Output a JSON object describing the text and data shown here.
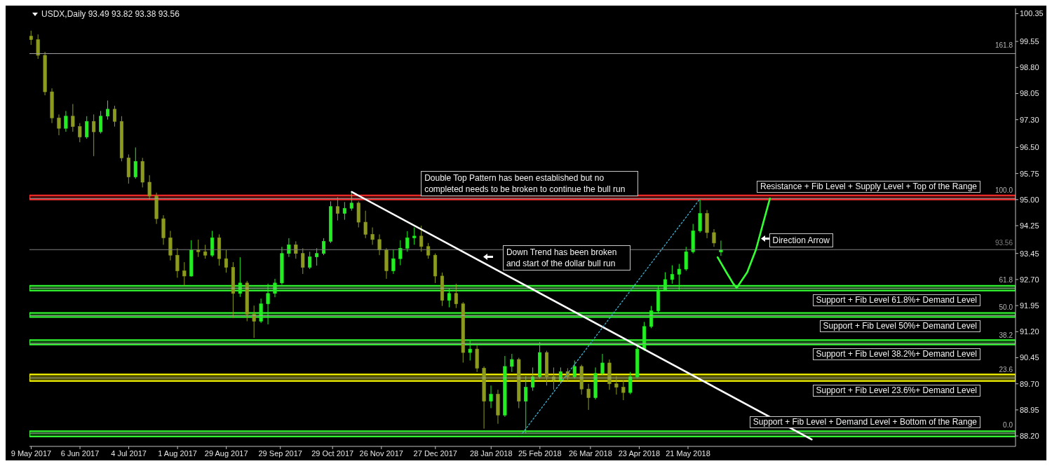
{
  "chart_data": {
    "type": "candlestick",
    "title": "USDX,Daily 93.49 93.82 93.38 93.56",
    "x": [
      "2017-05-09",
      "2017-05-13",
      "2017-05-17",
      "2017-05-21",
      "2017-05-25",
      "2017-05-29",
      "2017-06-02",
      "2017-06-06",
      "2017-06-10",
      "2017-06-14",
      "2017-06-18",
      "2017-06-22",
      "2017-06-26",
      "2017-06-30",
      "2017-07-04",
      "2017-07-08",
      "2017-07-12",
      "2017-07-16",
      "2017-07-20",
      "2017-07-24",
      "2017-07-28",
      "2017-08-01",
      "2017-08-05",
      "2017-08-09",
      "2017-08-13",
      "2017-08-17",
      "2017-08-21",
      "2017-08-25",
      "2017-08-29",
      "2017-09-02",
      "2017-09-06",
      "2017-09-10",
      "2017-09-14",
      "2017-09-18",
      "2017-09-22",
      "2017-09-26",
      "2017-09-30",
      "2017-10-04",
      "2017-10-08",
      "2017-10-12",
      "2017-10-16",
      "2017-10-20",
      "2017-10-24",
      "2017-10-28",
      "2017-11-01",
      "2017-11-05",
      "2017-11-09",
      "2017-11-13",
      "2017-11-17",
      "2017-11-21",
      "2017-11-25",
      "2017-11-29",
      "2017-12-03",
      "2017-12-07",
      "2017-12-11",
      "2017-12-15",
      "2017-12-19",
      "2017-12-23",
      "2017-12-27",
      "2017-12-31",
      "2018-01-04",
      "2018-01-08",
      "2018-01-12",
      "2018-01-16",
      "2018-01-20",
      "2018-01-24",
      "2018-01-28",
      "2018-02-01",
      "2018-02-05",
      "2018-02-09",
      "2018-02-13",
      "2018-02-17",
      "2018-02-21",
      "2018-02-25",
      "2018-03-01",
      "2018-03-05",
      "2018-03-09",
      "2018-03-13",
      "2018-03-17",
      "2018-03-21",
      "2018-03-25",
      "2018-03-29",
      "2018-04-02",
      "2018-04-06",
      "2018-04-10",
      "2018-04-14",
      "2018-04-18",
      "2018-04-22",
      "2018-04-26",
      "2018-04-30",
      "2018-05-04",
      "2018-05-08",
      "2018-05-12",
      "2018-05-16",
      "2018-05-20",
      "2018-05-24",
      "2018-05-28",
      "2018-06-01",
      "2018-06-05",
      "2018-06-09"
    ],
    "ohlc": [
      [
        99.7,
        99.86,
        99.45,
        99.6
      ],
      [
        99.6,
        99.75,
        99.05,
        99.15
      ],
      [
        99.15,
        99.25,
        98.0,
        98.1
      ],
      [
        98.1,
        98.2,
        97.2,
        97.35
      ],
      [
        97.35,
        97.45,
        96.85,
        97.05
      ],
      [
        97.05,
        97.55,
        96.95,
        97.4
      ],
      [
        97.4,
        97.75,
        96.95,
        97.1
      ],
      [
        97.1,
        97.2,
        96.65,
        96.8
      ],
      [
        96.8,
        97.4,
        96.75,
        97.25
      ],
      [
        97.25,
        97.45,
        96.25,
        96.95
      ],
      [
        96.95,
        97.55,
        96.9,
        97.4
      ],
      [
        97.4,
        97.85,
        97.3,
        97.6
      ],
      [
        97.6,
        97.7,
        97.1,
        97.25
      ],
      [
        97.25,
        97.4,
        96.1,
        96.2
      ],
      [
        96.2,
        96.3,
        95.46,
        95.65
      ],
      [
        95.65,
        96.5,
        95.6,
        96.1
      ],
      [
        96.1,
        96.2,
        95.35,
        95.5
      ],
      [
        95.5,
        95.7,
        95.0,
        95.1
      ],
      [
        95.1,
        95.2,
        94.3,
        94.45
      ],
      [
        94.45,
        94.55,
        93.7,
        93.9
      ],
      [
        93.9,
        94.1,
        93.25,
        93.4
      ],
      [
        93.4,
        93.6,
        92.75,
        92.95
      ],
      [
        92.95,
        93.2,
        92.52,
        92.8
      ],
      [
        92.8,
        93.83,
        92.78,
        93.55
      ],
      [
        93.55,
        93.85,
        93.35,
        93.5
      ],
      [
        93.5,
        93.7,
        93.3,
        93.4
      ],
      [
        93.4,
        94.1,
        93.35,
        93.9
      ],
      [
        93.9,
        94.0,
        93.1,
        93.3
      ],
      [
        93.3,
        93.55,
        92.9,
        93.05
      ],
      [
        93.05,
        93.2,
        91.6,
        92.3
      ],
      [
        92.3,
        93.34,
        92.2,
        92.6
      ],
      [
        92.6,
        92.66,
        91.5,
        91.7
      ],
      [
        91.7,
        91.95,
        91.02,
        91.5
      ],
      [
        91.5,
        92.15,
        91.45,
        92.0
      ],
      [
        92.0,
        92.58,
        91.41,
        92.3
      ],
      [
        92.3,
        92.72,
        92.19,
        92.6
      ],
      [
        92.6,
        93.64,
        92.55,
        93.45
      ],
      [
        93.45,
        93.89,
        93.35,
        93.7
      ],
      [
        93.7,
        93.8,
        93.3,
        93.45
      ],
      [
        93.45,
        93.6,
        92.86,
        93.05
      ],
      [
        93.05,
        93.5,
        93.0,
        93.35
      ],
      [
        93.35,
        93.6,
        93.1,
        93.45
      ],
      [
        93.45,
        93.89,
        93.4,
        93.8
      ],
      [
        93.8,
        94.95,
        93.75,
        94.8
      ],
      [
        94.8,
        95.07,
        94.4,
        94.6
      ],
      [
        94.6,
        94.93,
        94.42,
        94.75
      ],
      [
        94.75,
        95.2,
        94.68,
        94.9
      ],
      [
        94.9,
        94.95,
        94.2,
        94.35
      ],
      [
        94.35,
        94.68,
        93.89,
        94.0
      ],
      [
        94.0,
        94.2,
        93.7,
        93.85
      ],
      [
        93.85,
        94.0,
        93.4,
        93.55
      ],
      [
        93.55,
        93.6,
        92.72,
        92.95
      ],
      [
        92.95,
        93.56,
        92.86,
        93.3
      ],
      [
        93.3,
        93.83,
        93.11,
        93.6
      ],
      [
        93.6,
        94.09,
        93.5,
        93.9
      ],
      [
        93.9,
        94.2,
        93.7,
        93.95
      ],
      [
        93.95,
        94.25,
        93.5,
        93.65
      ],
      [
        93.65,
        93.75,
        93.3,
        93.4
      ],
      [
        93.4,
        93.45,
        92.6,
        92.8
      ],
      [
        92.8,
        92.9,
        91.94,
        92.1
      ],
      [
        92.1,
        92.45,
        91.9,
        92.3
      ],
      [
        92.3,
        92.58,
        91.88,
        92.0
      ],
      [
        92.0,
        92.05,
        90.31,
        90.6
      ],
      [
        90.6,
        90.96,
        90.37,
        90.7
      ],
      [
        90.7,
        90.8,
        90.04,
        90.15
      ],
      [
        90.15,
        90.2,
        88.41,
        89.2
      ],
      [
        89.2,
        89.65,
        89.0,
        89.4
      ],
      [
        89.4,
        89.53,
        88.55,
        88.8
      ],
      [
        88.8,
        90.5,
        88.75,
        90.2
      ],
      [
        90.2,
        90.56,
        90.04,
        90.4
      ],
      [
        90.4,
        90.45,
        89.0,
        89.2
      ],
      [
        89.2,
        89.92,
        88.28,
        89.6
      ],
      [
        89.6,
        90.17,
        89.5,
        89.9
      ],
      [
        89.9,
        90.9,
        89.85,
        90.6
      ],
      [
        90.6,
        90.65,
        89.65,
        89.9
      ],
      [
        89.9,
        90.17,
        89.53,
        89.8
      ],
      [
        89.8,
        90.17,
        89.7,
        90.05
      ],
      [
        90.05,
        90.15,
        89.78,
        89.9
      ],
      [
        89.9,
        90.37,
        89.85,
        90.2
      ],
      [
        90.2,
        90.25,
        89.39,
        89.55
      ],
      [
        89.55,
        89.7,
        88.95,
        89.3
      ],
      [
        89.3,
        90.17,
        89.25,
        90.0
      ],
      [
        90.0,
        90.56,
        89.95,
        90.3
      ],
      [
        90.3,
        90.4,
        89.53,
        89.7
      ],
      [
        89.7,
        89.92,
        89.39,
        89.6
      ],
      [
        89.6,
        89.8,
        89.23,
        89.45
      ],
      [
        89.45,
        90.04,
        89.4,
        89.9
      ],
      [
        89.9,
        90.82,
        89.85,
        90.7
      ],
      [
        90.7,
        91.48,
        90.65,
        91.35
      ],
      [
        91.35,
        91.94,
        91.3,
        91.8
      ],
      [
        91.8,
        92.52,
        91.75,
        92.4
      ],
      [
        92.4,
        92.91,
        92.38,
        92.7
      ],
      [
        92.7,
        93.11,
        92.58,
        92.85
      ],
      [
        92.85,
        93.15,
        92.38,
        93.0
      ],
      [
        93.0,
        93.64,
        92.95,
        93.5
      ],
      [
        93.5,
        94.3,
        93.45,
        94.1
      ],
      [
        94.1,
        95.0,
        94.05,
        94.6
      ],
      [
        94.6,
        94.7,
        93.89,
        94.05
      ],
      [
        94.05,
        94.15,
        93.64,
        93.75
      ],
      [
        93.49,
        93.82,
        93.38,
        93.56
      ]
    ],
    "colors": [
      "#8c9a1e",
      "#8c9a1e",
      "#8c9a1e",
      "#8c9a1e",
      "#8c9a1e",
      "#22ee22",
      "#8c9a1e",
      "#8c9a1e",
      "#22ee22",
      "#8c9a1e",
      "#22ee22",
      "#22ee22",
      "#8c9a1e",
      "#8c9a1e",
      "#8c9a1e",
      "#22ee22",
      "#8c9a1e",
      "#8c9a1e",
      "#8c9a1e",
      "#8c9a1e",
      "#8c9a1e",
      "#8c9a1e",
      "#8c9a1e",
      "#22ee22",
      "#8c9a1e",
      "#8c9a1e",
      "#22ee22",
      "#8c9a1e",
      "#8c9a1e",
      "#8c9a1e",
      "#22ee22",
      "#8c9a1e",
      "#8c9a1e",
      "#22ee22",
      "#22ee22",
      "#22ee22",
      "#22ee22",
      "#22ee22",
      "#8c9a1e",
      "#8c9a1e",
      "#22ee22",
      "#22ee22",
      "#22ee22",
      "#22ee22",
      "#8c9a1e",
      "#22ee22",
      "#22ee22",
      "#8c9a1e",
      "#8c9a1e",
      "#8c9a1e",
      "#8c9a1e",
      "#8c9a1e",
      "#22ee22",
      "#22ee22",
      "#22ee22",
      "#22ee22",
      "#8c9a1e",
      "#8c9a1e",
      "#8c9a1e",
      "#8c9a1e",
      "#22ee22",
      "#8c9a1e",
      "#8c9a1e",
      "#22ee22",
      "#8c9a1e",
      "#8c9a1e",
      "#22ee22",
      "#8c9a1e",
      "#22ee22",
      "#22ee22",
      "#8c9a1e",
      "#22ee22",
      "#22ee22",
      "#22ee22",
      "#8c9a1e",
      "#8c9a1e",
      "#22ee22",
      "#8c9a1e",
      "#22ee22",
      "#8c9a1e",
      "#8c9a1e",
      "#22ee22",
      "#22ee22",
      "#8c9a1e",
      "#8c9a1e",
      "#8c9a1e",
      "#22ee22",
      "#22ee22",
      "#22ee22",
      "#22ee22",
      "#22ee22",
      "#22ee22",
      "#22ee22",
      "#22ee22",
      "#22ee22",
      "#22ee22",
      "#22ee22",
      "#8c9a1e",
      "#8c9a1e",
      "#22ee22"
    ],
    "series": [
      {
        "type": "line",
        "color": "#ffffff",
        "x": [
          "2017-11-09",
          "2018-07-31"
        ],
        "values": [
          95.22,
          88.1
        ]
      },
      {
        "type": "line",
        "color": "#40b0d0",
        "line_style": "dotted",
        "x": [
          "2018-02-15",
          "2018-05-28"
        ],
        "values": [
          88.28,
          95.03
        ]
      },
      {
        "type": "line",
        "color": "#33ff33",
        "x": [
          "2018-06-07",
          "2018-06-12",
          "2018-06-16",
          "2018-06-18",
          "2018-06-24",
          "2018-06-29",
          "2018-07-03",
          "2018-07-07"
        ],
        "values": [
          93.34,
          92.91,
          92.58,
          92.46,
          92.91,
          93.56,
          94.3,
          95.03
        ]
      }
    ],
    "xlim": [
      "2017-05-08",
      "2018-11-25"
    ],
    "xticks": [
      {
        "value": "2017-05-09",
        "label": "9 May 2017"
      },
      {
        "value": "2017-06-06",
        "label": "6 Jun 2017"
      },
      {
        "value": "2017-07-04",
        "label": "4 Jul 2017"
      },
      {
        "value": "2017-08-01",
        "label": "1 Aug 2017"
      },
      {
        "value": "2017-08-29",
        "label": "29 Aug 2017"
      },
      {
        "value": "2017-09-29",
        "label": "29 Sep 2017"
      },
      {
        "value": "2017-10-29",
        "label": "29 Oct 2017"
      },
      {
        "value": "2017-11-26",
        "label": "26 Nov 2017"
      },
      {
        "value": "2017-12-27",
        "label": "27 Dec 2017"
      },
      {
        "value": "2018-01-28",
        "label": "28 Jan 2018"
      },
      {
        "value": "2018-02-25",
        "label": "25 Feb 2018"
      },
      {
        "value": "2018-03-26",
        "label": "26 Mar 2018"
      },
      {
        "value": "2018-04-23",
        "label": "23 Apr 2018"
      },
      {
        "value": "2018-05-21",
        "label": "21 May 2018"
      }
    ],
    "ylim": [
      87.9,
      100.5
    ],
    "yticks": [
      {
        "value": 88.2,
        "label": "88.20"
      },
      88.95,
      {
        "value": 89.7,
        "label": "89.70"
      },
      90.45,
      {
        "value": 91.2,
        "label": "91.20"
      },
      91.95,
      {
        "value": 92.7,
        "label": "92.70"
      },
      93.45,
      94.25,
      {
        "value": 95,
        "label": "95.00"
      },
      95.75,
      {
        "value": 96.5,
        "label": "96.50"
      },
      {
        "value": 97.3,
        "label": "97.30"
      },
      98.05,
      {
        "value": 98.8,
        "label": "98.80"
      },
      99.55,
      100.35
    ],
    "ref_lines": [
      {
        "axis": "y",
        "value": 99.2,
        "color": "#a0a0a0"
      },
      {
        "axis": "y",
        "value": 95.03,
        "color": "#a0a0a0"
      },
      {
        "axis": "y",
        "value": 92.45,
        "color": "#a0a0a0"
      },
      {
        "axis": "y",
        "value": 91.66,
        "color": "#a0a0a0"
      },
      {
        "axis": "y",
        "value": 90.86,
        "color": "#a0a0a0"
      },
      {
        "axis": "y",
        "value": 89.87,
        "color": "#a0a0a0"
      },
      {
        "axis": "y",
        "value": 88.28,
        "color": "#a0a0a0"
      },
      {
        "axis": "y",
        "value": 93.56,
        "label": "93.56",
        "color": "#808080"
      }
    ],
    "bands": [
      {
        "axis": "y",
        "from": 95.0,
        "to": 95.12,
        "label": "Resistance + Fib Level + Supply Level + Top of the Range",
        "color": "#ff2a2a"
      },
      {
        "axis": "y",
        "from": 92.38,
        "to": 92.52,
        "label": "Support + Fib Level 61.8%+ Demand Level",
        "color": "#33ff33"
      },
      {
        "axis": "y",
        "from": 91.62,
        "to": 91.74,
        "label": "Support + Fib Level 50%+ Demand Level",
        "color": "#33ff33"
      },
      {
        "axis": "y",
        "from": 90.83,
        "to": 90.96,
        "label": "Support + Fib Level 38.2%+ Demand Level",
        "color": "#33ff33"
      },
      {
        "axis": "y",
        "from": 89.78,
        "to": 89.97,
        "label": "Support + Fib Level 23.6%+ Demand Level",
        "color": "#ffff00"
      },
      {
        "axis": "y",
        "from": 88.18,
        "to": 88.34,
        "label": "Support + Fib Level + Demand Level + Bottom of the Range",
        "color": "#33ff33"
      }
    ],
    "annotations": [
      "Double Top Pattern has been established but no completed needs to be broken to continue the bull run",
      "Down Trend has been broken and start of the dollar bull run",
      "Direction Arrow",
      {
        "text": "161.8",
        "x": "2018-11-25",
        "y": 99.2
      },
      {
        "text": "100.0",
        "x": "2018-11-25",
        "y": 95.03
      },
      {
        "text": "61.8",
        "x": "2018-11-25",
        "y": 92.45
      },
      {
        "text": "50.0",
        "x": "2018-11-25",
        "y": 91.66
      },
      {
        "text": "38.2",
        "x": "2018-11-25",
        "y": 90.86
      },
      {
        "text": "23.6",
        "x": "2018-11-25",
        "y": 89.87
      },
      {
        "text": "0.0",
        "x": "2018-11-25",
        "y": 88.28
      }
    ]
  }
}
